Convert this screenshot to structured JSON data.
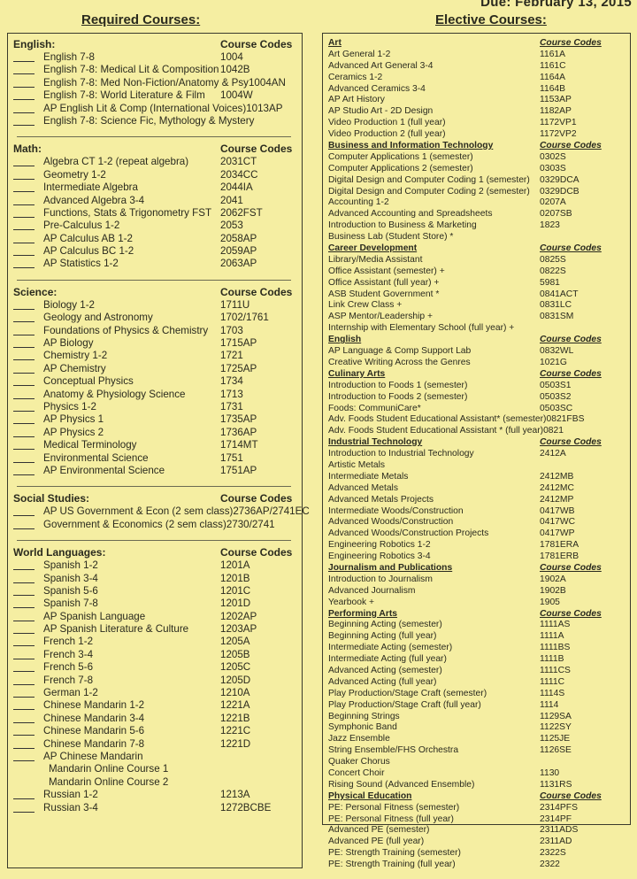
{
  "due": "Due:  February 13, 2015",
  "required": {
    "title": "Required Courses:",
    "codes_label": "Course Codes",
    "sections": [
      {
        "name": "English:",
        "rows": [
          {
            "name": "English 7-8",
            "code": "1004",
            "blank": true
          },
          {
            "name": "English 7-8: Medical Lit & Composition",
            "code": "1042B",
            "blank": true
          },
          {
            "name": "English 7-8: Med Non-Fiction/Anatomy & Psy",
            "code": "1004AN",
            "blank": true
          },
          {
            "name": "English 7-8: World Literature & Film",
            "code": "1004W",
            "blank": true
          },
          {
            "name": "AP English Lit & Comp (International Voices)",
            "code": "1013AP",
            "blank": true
          },
          {
            "name": "English 7-8: Science Fic, Mythology & Mystery",
            "code": "",
            "blank": true
          }
        ]
      },
      {
        "name": "Math:",
        "rows": [
          {
            "name": "Algebra CT 1-2 (repeat algebra)",
            "code": "2031CT",
            "blank": true
          },
          {
            "name": "Geometry 1-2",
            "code": "2034CC",
            "blank": true
          },
          {
            "name": "Intermediate Algebra",
            "code": "2044IA",
            "blank": true
          },
          {
            "name": "Advanced Algebra 3-4",
            "code": "2041",
            "blank": true
          },
          {
            "name": "Functions, Stats & Trigonometry FST",
            "code": "2062FST",
            "blank": true
          },
          {
            "name": "Pre-Calculus 1-2",
            "code": "2053",
            "blank": true
          },
          {
            "name": "AP Calculus AB 1-2",
            "code": "2058AP",
            "blank": true
          },
          {
            "name": "AP Calculus BC 1-2",
            "code": "2059AP",
            "blank": true
          },
          {
            "name": "AP Statistics 1-2",
            "code": "2063AP",
            "blank": true
          }
        ]
      },
      {
        "name": "Science:",
        "rows": [
          {
            "name": "Biology 1-2",
            "code": "1711U",
            "blank": true
          },
          {
            "name": "Geology and Astronomy",
            "code": "1702/1761",
            "blank": true
          },
          {
            "name": "Foundations of Physics & Chemistry",
            "code": "1703",
            "blank": true
          },
          {
            "name": "AP Biology",
            "code": "1715AP",
            "blank": true
          },
          {
            "name": "Chemistry 1-2",
            "code": "1721",
            "blank": true
          },
          {
            "name": "AP Chemistry",
            "code": "1725AP",
            "blank": true
          },
          {
            "name": "Conceptual Physics",
            "code": "1734",
            "blank": true
          },
          {
            "name": "Anatomy & Physiology Science",
            "code": "1713",
            "blank": true
          },
          {
            "name": "Physics 1-2",
            "code": "1731",
            "blank": true
          },
          {
            "name": "AP Physics 1",
            "code": "1735AP",
            "blank": true
          },
          {
            "name": "AP Physics 2",
            "code": "1736AP",
            "blank": true
          },
          {
            "name": "Medical Terminology",
            "code": "1714MT",
            "blank": true
          },
          {
            "name": "Environmental Science",
            "code": "1751",
            "blank": true
          },
          {
            "name": "AP Environmental Science",
            "code": "1751AP",
            "blank": true
          }
        ]
      },
      {
        "name": "Social Studies:",
        "rows": [
          {
            "name": "AP US Government & Econ (2 sem class)",
            "code": "2736AP/2741EC",
            "blank": true
          },
          {
            "name": "Government & Economics (2 sem class)",
            "code": "2730/2741",
            "blank": true
          }
        ]
      },
      {
        "name": "World Languages:",
        "rows": [
          {
            "name": "Spanish 1-2",
            "code": "1201A",
            "blank": true
          },
          {
            "name": "Spanish 3-4",
            "code": "1201B",
            "blank": true
          },
          {
            "name": "Spanish 5-6",
            "code": "1201C",
            "blank": true
          },
          {
            "name": "Spanish 7-8",
            "code": "1201D",
            "blank": true
          },
          {
            "name": "AP Spanish Language",
            "code": "1202AP",
            "blank": true
          },
          {
            "name": "AP Spanish Literature & Culture",
            "code": "1203AP",
            "blank": true
          },
          {
            "name": "French 1-2",
            "code": "1205A",
            "blank": true
          },
          {
            "name": "French 3-4",
            "code": "1205B",
            "blank": true
          },
          {
            "name": "French 5-6",
            "code": "1205C",
            "blank": true
          },
          {
            "name": "French 7-8",
            "code": "1205D",
            "blank": true
          },
          {
            "name": "German 1-2",
            "code": "1210A",
            "blank": true
          },
          {
            "name": "Chinese Mandarin 1-2",
            "code": "1221A",
            "blank": true
          },
          {
            "name": "Chinese Mandarin 3-4",
            "code": "1221B",
            "blank": true
          },
          {
            "name": "Chinese Mandarin 5-6",
            "code": "1221C",
            "blank": true
          },
          {
            "name": "Chinese Mandarin 7-8",
            "code": "1221D",
            "blank": true
          },
          {
            "name": "AP Chinese Mandarin",
            "code": "",
            "blank": true
          },
          {
            "name": "Mandarin Online Course 1",
            "code": "",
            "blank": false
          },
          {
            "name": "Mandarin Online Course 2",
            "code": "",
            "blank": false
          },
          {
            "name": "Russian 1-2",
            "code": "1213A",
            "blank": true
          },
          {
            "name": "Russian 3-4",
            "code": "1272BCBE",
            "blank": true
          }
        ]
      }
    ]
  },
  "elective": {
    "title": "Elective Courses:",
    "codes_label": "Course Codes",
    "sections": [
      {
        "name": "Art",
        "show_codes_label": true,
        "rows": [
          {
            "name": "Art General 1-2",
            "code": "1161A"
          },
          {
            "name": "Advanced Art General 3-4",
            "code": "1161C"
          },
          {
            "name": "Ceramics 1-2",
            "code": "1164A"
          },
          {
            "name": "Advanced Ceramics 3-4",
            "code": "1164B"
          },
          {
            "name": "AP Art History",
            "code": "1153AP"
          },
          {
            "name": "AP Studio Art - 2D Design",
            "code": "1182AP"
          },
          {
            "name": "Video Production 1   (full year)",
            "code": "1172VP1"
          },
          {
            "name": "Video Production 2   (full year)",
            "code": "1172VP2"
          }
        ]
      },
      {
        "name": "Business and Information Technology",
        "show_codes_label": true,
        "rows": [
          {
            "name": "Computer Applications 1   (semester)",
            "code": "0302S"
          },
          {
            "name": "Computer Applications 2   (semester)",
            "code": "0303S"
          },
          {
            "name": "Digital Design and Computer Coding 1   (semester)",
            "code": "0329DCA"
          },
          {
            "name": "Digital Design and Computer Coding 2   (semester)",
            "code": "0329DCB"
          },
          {
            "name": "Accounting 1-2",
            "code": "0207A"
          },
          {
            "name": "Advanced Accounting and Spreadsheets",
            "code": "0207SB"
          },
          {
            "name": "Introduction to Business & Marketing",
            "code": "1823"
          },
          {
            "name": "Business Lab (Student Store) *",
            "code": ""
          }
        ]
      },
      {
        "name": "Career Development",
        "show_codes_label": true,
        "rows": [
          {
            "name": "Library/Media Assistant",
            "code": "0825S"
          },
          {
            "name": "Office Assistant   (semester) +",
            "code": "0822S"
          },
          {
            "name": "Office Assistant   (full year) +",
            "code": "5981"
          },
          {
            "name": "ASB Student Government *",
            "code": "0841ACT"
          },
          {
            "name": "Link Crew Class +",
            "code": "0831LC"
          },
          {
            "name": "ASP Mentor/Leadership +",
            "code": "0831SM"
          },
          {
            "name": "Internship with Elementary School   (full year) +",
            "code": ""
          }
        ]
      },
      {
        "name": "English",
        "show_codes_label": true,
        "rows": [
          {
            "name": "AP Language & Comp Support Lab",
            "code": "0832WL"
          },
          {
            "name": "Creative Writing Across the Genres",
            "code": "1021G"
          }
        ]
      },
      {
        "name": "Culinary Arts",
        "show_codes_label": true,
        "rows": [
          {
            "name": "Introduction to Foods 1     (semester)",
            "code": "0503S1"
          },
          {
            "name": "Introduction to Foods 2     (semester)",
            "code": "0503S2"
          },
          {
            "name": "Foods: CommuniCare*",
            "code": "0503SC"
          },
          {
            "name": "Adv. Foods Student Educational Assistant*   (semester)",
            "code": "0821FBS"
          },
          {
            "name": "Adv. Foods Student Educational Assistant *   (full year)",
            "code": "0821"
          }
        ]
      },
      {
        "name": "Industrial Technology",
        "show_codes_label": true,
        "rows": [
          {
            "name": "Introduction to Industrial Technology",
            "code": "2412A"
          },
          {
            "name": "Artistic Metals",
            "code": ""
          },
          {
            "name": "Intermediate Metals",
            "code": "2412MB"
          },
          {
            "name": "Advanced Metals",
            "code": "2412MC"
          },
          {
            "name": "Advanced Metals Projects",
            "code": "2412MP"
          },
          {
            "name": "Intermediate Woods/Construction",
            "code": "0417WB"
          },
          {
            "name": "Advanced Woods/Construction",
            "code": "0417WC"
          },
          {
            "name": "Advanced Woods/Construction Projects",
            "code": "0417WP"
          },
          {
            "name": "Engineering Robotics 1-2",
            "code": "1781ERA"
          },
          {
            "name": "Engineering Robotics 3-4",
            "code": "1781ERB"
          }
        ]
      },
      {
        "name": "Journalism and Publications",
        "show_codes_label": true,
        "rows": [
          {
            "name": "Introduction to Journalism",
            "code": "1902A"
          },
          {
            "name": "Advanced Journalism",
            "code": "1902B"
          },
          {
            "name": "Yearbook +",
            "code": "1905"
          }
        ]
      },
      {
        "name": "Performing Arts",
        "show_codes_label": true,
        "rows": [
          {
            "name": "Beginning Acting     (semester)",
            "code": "1111AS"
          },
          {
            "name": "Beginning Acting     (full year)",
            "code": "1111A"
          },
          {
            "name": "Intermediate Acting   (semester)",
            "code": "1111BS"
          },
          {
            "name": "Intermediate Acting   (full year)",
            "code": "1111B"
          },
          {
            "name": "Advanced Acting   (semester)",
            "code": "1111CS"
          },
          {
            "name": "Advanced Acting   (full year)",
            "code": "1111C"
          },
          {
            "name": "Play Production/Stage Craft    (semester)",
            "code": "1114S"
          },
          {
            "name": "Play Production/Stage Craft    (full year)",
            "code": "1114"
          },
          {
            "name": "Beginning Strings",
            "code": "1129SA"
          },
          {
            "name": "Symphonic Band",
            "code": "1122SY"
          },
          {
            "name": "Jazz Ensemble",
            "code": "1125JE"
          },
          {
            "name": "String Ensemble/FHS Orchestra",
            "code": "1126SE"
          },
          {
            "name": "Quaker Chorus",
            "code": ""
          },
          {
            "name": "Concert Choir",
            "code": "1130"
          },
          {
            "name": "Rising Sound (Advanced Ensemble)",
            "code": "1131RS"
          }
        ]
      },
      {
        "name": "Physical Education",
        "show_codes_label": true,
        "rows": [
          {
            "name": "PE: Personal Fitness   (semester)",
            "code": "2314PFS"
          },
          {
            "name": "PE: Personal Fitness   (full year)",
            "code": "2314PF"
          },
          {
            "name": "Advanced PE   (semester)",
            "code": "2311ADS"
          },
          {
            "name": "Advanced PE   (full year)",
            "code": "2311AD"
          },
          {
            "name": "PE: Strength Training   (semester)",
            "code": "2322S"
          },
          {
            "name": "PE: Strength Training   (full year)",
            "code": "2322"
          }
        ]
      }
    ]
  }
}
